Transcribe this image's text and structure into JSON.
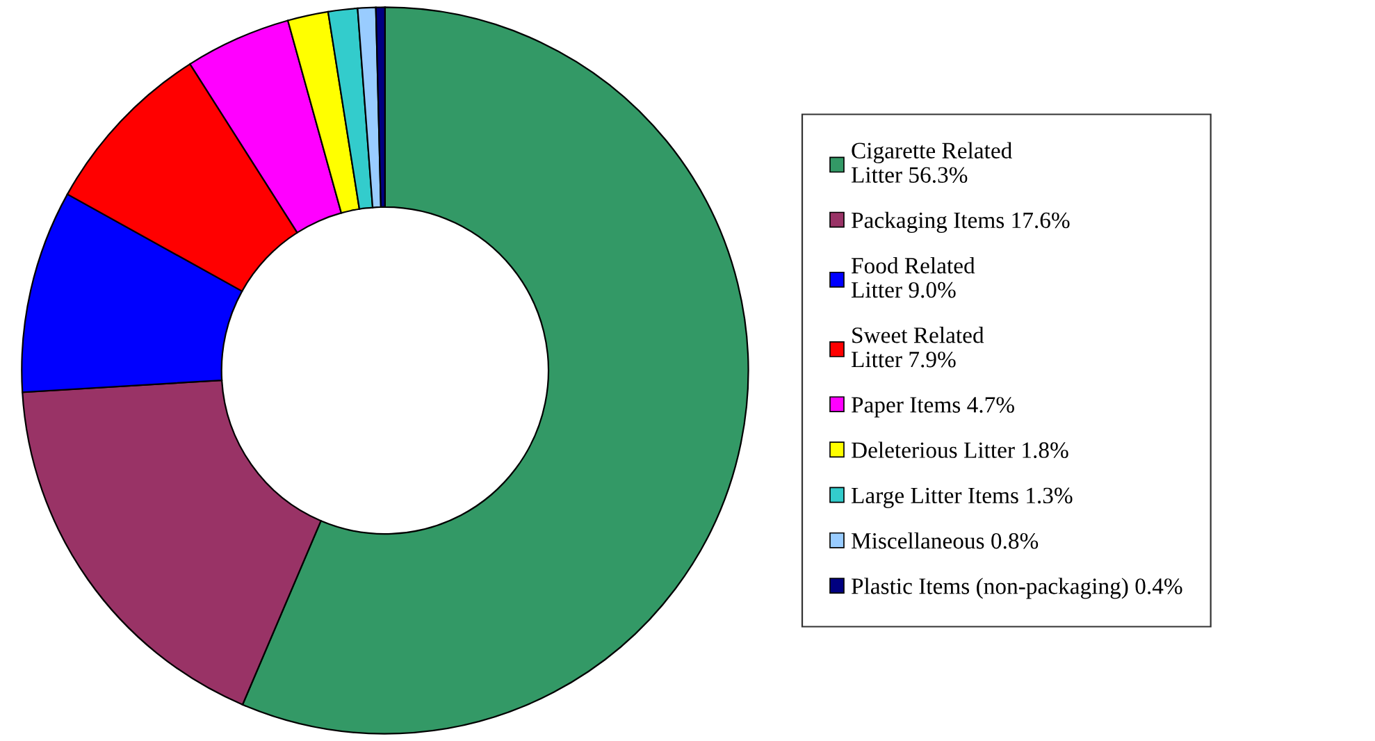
{
  "chart_data": {
    "type": "donut",
    "categories": [
      "Cigarette Related\nLitter",
      "Packaging Items",
      "Food Related\nLitter",
      "Sweet Related\nLitter",
      "Paper Items",
      "Deleterious Litter",
      "Large Litter Items",
      "Miscellaneous",
      "Plastic Items (non-packaging)"
    ],
    "values": [
      56.3,
      17.6,
      9.0,
      7.9,
      4.7,
      1.8,
      1.3,
      0.8,
      0.4
    ],
    "value_labels": [
      "56.3%",
      "17.6%",
      "9.0%",
      "7.9%",
      "4.7%",
      "1.8%",
      "1.3%",
      "0.8%",
      "0.4%"
    ],
    "colors": [
      "#339966",
      "#993366",
      "#0000ff",
      "#ff0000",
      "#ff00ff",
      "#ffff00",
      "#33cccc",
      "#99ccff",
      "#000080"
    ],
    "legend": "right"
  }
}
